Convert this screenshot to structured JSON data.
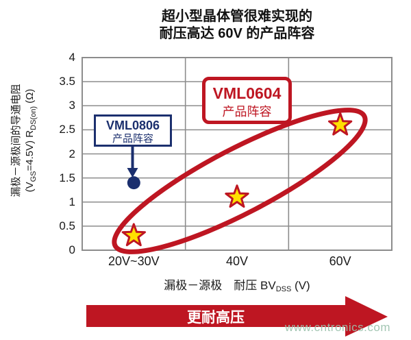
{
  "chart_data": {
    "type": "scatter",
    "title_line1": "超小型晶体管很难实现的",
    "title_line2": "耐压高达 60V 的产品阵容",
    "x_categories": [
      "20V~30V",
      "40V",
      "60V"
    ],
    "y_axis": {
      "min": 0,
      "max": 4,
      "step": 0.5,
      "ticks": [
        "4",
        "3.5",
        "3",
        "2.5",
        "2",
        "1.5",
        "1",
        "0.5",
        "0"
      ]
    },
    "grid": "on",
    "ylabel": {
      "line1": "漏极－源极间的导通电阻",
      "l2p1": "(V",
      "l2sub1": "GS",
      "l2p2": "=4.5V) R",
      "l2sub2": "DS(on)",
      "l2p3": " (Ω)"
    },
    "xlabel": {
      "p1": "漏极－源极　耐压 BV",
      "sub": "DSS",
      "p2": " (V)"
    },
    "series": [
      {
        "name": "VML0604 产品阵容",
        "marker": "star",
        "color": "#BE1622",
        "fill": "#FFE000",
        "points": [
          {
            "x": "20V~30V",
            "y": 0.3
          },
          {
            "x": "40V",
            "y": 1.1
          },
          {
            "x": "60V",
            "y": 2.6
          }
        ]
      },
      {
        "name": "VML0806 产品阵容",
        "marker": "circle",
        "color": "#1B2F6E",
        "fill": "#1B2F6E",
        "points": [
          {
            "x": "20V~30V",
            "y": 1.4
          }
        ]
      }
    ],
    "annotations": [
      {
        "id": "vml0604",
        "line1": "VML0604",
        "line2": "产品阵容",
        "color": "#BE1622"
      },
      {
        "id": "vml0806",
        "line1": "VML0806",
        "line2": "产品阵容",
        "color": "#1B2F6E"
      }
    ]
  },
  "footer": {
    "arrow_label": "更耐高压",
    "watermark": "www.cntronics.com"
  }
}
